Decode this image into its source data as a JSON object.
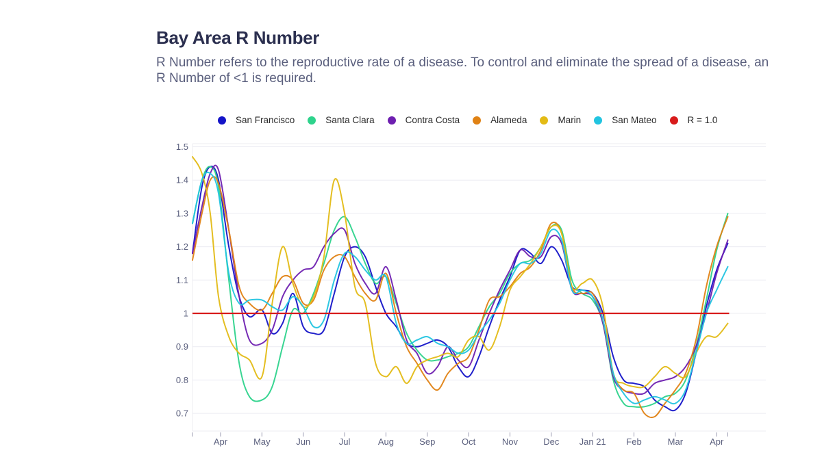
{
  "header": {
    "title": "Bay Area R Number",
    "subtitle": "R Number refers to the reproductive rate of a disease. To control and eliminate the spread of a disease, an R Number of <1 is required."
  },
  "chart_data": {
    "type": "line",
    "title": "Bay Area R Number",
    "xlabel": "",
    "ylabel": "",
    "x_unit": "months since Apr 2020 (0 = Apr, 9 = Jan 21, 12 = Apr 21)",
    "xlim": [
      -0.68,
      13.1
    ],
    "ylim": [
      0.64,
      1.51
    ],
    "grid": true,
    "legend_position": "top-center",
    "x_ticks": [
      {
        "x": 0,
        "label": "Apr"
      },
      {
        "x": 1,
        "label": "May"
      },
      {
        "x": 2,
        "label": "Jun"
      },
      {
        "x": 3,
        "label": "Jul"
      },
      {
        "x": 4,
        "label": "Aug"
      },
      {
        "x": 5,
        "label": "Sep"
      },
      {
        "x": 6,
        "label": "Oct"
      },
      {
        "x": 7,
        "label": "Nov"
      },
      {
        "x": 8,
        "label": "Dec"
      },
      {
        "x": 9,
        "label": "Jan 21"
      },
      {
        "x": 10,
        "label": "Feb"
      },
      {
        "x": 11,
        "label": "Mar"
      },
      {
        "x": 12,
        "label": "Apr"
      }
    ],
    "y_ticks": [
      {
        "y": 0.7,
        "label": "0.7"
      },
      {
        "y": 0.8,
        "label": "0.8"
      },
      {
        "y": 0.9,
        "label": "0.9"
      },
      {
        "y": 1.0,
        "label": "1"
      },
      {
        "y": 1.1,
        "label": "1.1"
      },
      {
        "y": 1.2,
        "label": "1.2"
      },
      {
        "y": 1.3,
        "label": "1.3"
      },
      {
        "y": 1.4,
        "label": "1.4"
      },
      {
        "y": 1.5,
        "label": "1.5"
      }
    ],
    "x": [
      -0.68,
      -0.45,
      -0.25,
      -0.05,
      0.2,
      0.45,
      0.7,
      1.0,
      1.25,
      1.5,
      1.75,
      2.0,
      2.25,
      2.5,
      2.75,
      3.0,
      3.25,
      3.5,
      3.75,
      4.0,
      4.25,
      4.5,
      4.75,
      5.0,
      5.25,
      5.5,
      5.75,
      6.0,
      6.25,
      6.5,
      6.75,
      7.0,
      7.25,
      7.5,
      7.75,
      8.0,
      8.25,
      8.5,
      8.75,
      9.0,
      9.25,
      9.5,
      9.75,
      10.0,
      10.25,
      10.5,
      10.75,
      11.0,
      11.25,
      11.5,
      11.75,
      12.0,
      12.27
    ],
    "series": [
      {
        "name": "San Francisco",
        "color": "#1414c8",
        "values": [
          1.18,
          1.38,
          1.44,
          1.4,
          1.2,
          1.05,
          0.99,
          1.01,
          0.94,
          0.97,
          1.06,
          0.96,
          0.94,
          0.95,
          1.06,
          1.17,
          1.2,
          1.17,
          1.08,
          1.0,
          0.96,
          0.91,
          0.9,
          0.91,
          0.92,
          0.9,
          0.84,
          0.81,
          0.87,
          0.96,
          1.04,
          1.11,
          1.19,
          1.18,
          1.15,
          1.2,
          1.16,
          1.08,
          1.07,
          1.06,
          1.0,
          0.87,
          0.8,
          0.79,
          0.78,
          0.74,
          0.72,
          0.71,
          0.76,
          0.88,
          1.02,
          1.13,
          1.21
        ]
      },
      {
        "name": "Santa Clara",
        "color": "#2ed38c",
        "values": [
          1.27,
          1.4,
          1.44,
          1.38,
          1.1,
          0.85,
          0.75,
          0.74,
          0.78,
          0.9,
          1.01,
          1.0,
          1.06,
          1.15,
          1.25,
          1.29,
          1.23,
          1.15,
          1.09,
          1.11,
          1.03,
          0.94,
          0.89,
          0.86,
          0.86,
          0.87,
          0.88,
          0.9,
          0.96,
          1.02,
          1.06,
          1.12,
          1.15,
          1.16,
          1.2,
          1.26,
          1.25,
          1.1,
          1.06,
          1.04,
          0.97,
          0.8,
          0.73,
          0.72,
          0.72,
          0.73,
          0.75,
          0.76,
          0.8,
          0.9,
          1.04,
          1.19,
          1.3
        ]
      },
      {
        "name": "Contra Costa",
        "color": "#6e1fb0",
        "values": [
          1.18,
          1.32,
          1.42,
          1.43,
          1.25,
          1.05,
          0.92,
          0.91,
          0.95,
          1.05,
          1.1,
          1.13,
          1.14,
          1.2,
          1.24,
          1.25,
          1.15,
          1.09,
          1.06,
          1.14,
          1.04,
          0.92,
          0.88,
          0.82,
          0.84,
          0.9,
          0.86,
          0.84,
          0.92,
          1.0,
          1.07,
          1.13,
          1.19,
          1.17,
          1.17,
          1.23,
          1.21,
          1.07,
          1.06,
          1.05,
          0.97,
          0.81,
          0.77,
          0.76,
          0.76,
          0.79,
          0.8,
          0.81,
          0.84,
          0.9,
          1.0,
          1.12,
          1.22
        ]
      },
      {
        "name": "Alameda",
        "color": "#e08214",
        "values": [
          1.16,
          1.3,
          1.4,
          1.39,
          1.25,
          1.08,
          1.03,
          1.01,
          1.06,
          1.11,
          1.1,
          1.03,
          1.04,
          1.13,
          1.17,
          1.17,
          1.11,
          1.06,
          1.04,
          1.12,
          1.0,
          0.9,
          0.85,
          0.8,
          0.77,
          0.82,
          0.85,
          0.87,
          0.95,
          1.04,
          1.05,
          1.08,
          1.12,
          1.14,
          1.19,
          1.27,
          1.24,
          1.08,
          1.06,
          1.06,
          0.98,
          0.82,
          0.77,
          0.76,
          0.7,
          0.69,
          0.73,
          0.77,
          0.82,
          0.92,
          1.08,
          1.2,
          1.29
        ]
      },
      {
        "name": "Marin",
        "color": "#e3bb15",
        "values": [
          1.47,
          1.42,
          1.3,
          1.05,
          0.93,
          0.88,
          0.86,
          0.81,
          1.03,
          1.2,
          1.09,
          1.02,
          1.05,
          1.17,
          1.4,
          1.3,
          1.08,
          1.03,
          0.85,
          0.81,
          0.84,
          0.79,
          0.84,
          0.86,
          0.87,
          0.88,
          0.87,
          0.92,
          0.93,
          0.89,
          0.96,
          1.07,
          1.11,
          1.15,
          1.2,
          1.26,
          1.24,
          1.08,
          1.09,
          1.1,
          1.02,
          0.82,
          0.79,
          0.78,
          0.78,
          0.81,
          0.84,
          0.82,
          0.81,
          0.88,
          0.93,
          0.93,
          0.97
        ]
      },
      {
        "name": "San Mateo",
        "color": "#22c4e0",
        "values": [
          1.27,
          1.4,
          1.42,
          1.36,
          1.12,
          1.03,
          1.04,
          1.04,
          1.02,
          1.01,
          1.05,
          1.02,
          0.96,
          0.98,
          1.1,
          1.18,
          1.17,
          1.13,
          1.1,
          1.11,
          0.97,
          0.91,
          0.92,
          0.93,
          0.91,
          0.9,
          0.88,
          0.89,
          0.94,
          0.98,
          1.03,
          1.1,
          1.15,
          1.15,
          1.18,
          1.25,
          1.22,
          1.07,
          1.07,
          1.05,
          0.98,
          0.82,
          0.76,
          0.73,
          0.74,
          0.75,
          0.74,
          0.73,
          0.77,
          0.88,
          1.0,
          1.07,
          1.14
        ]
      },
      {
        "name": "R = 1.0",
        "color": "#d81b1b",
        "constant": 1.0
      }
    ]
  }
}
